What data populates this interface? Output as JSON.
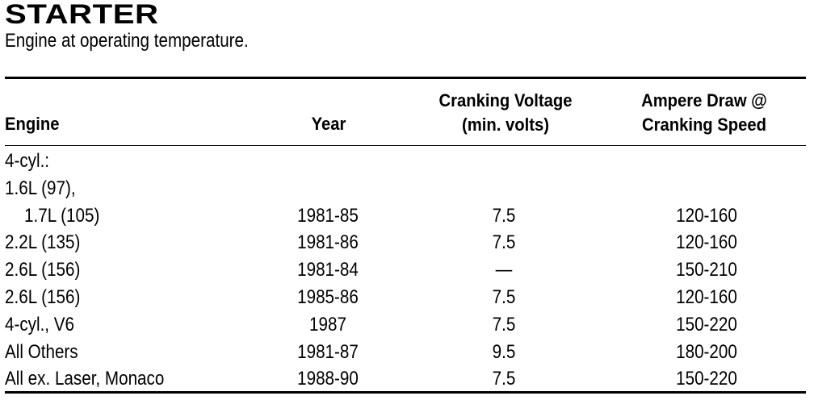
{
  "title": "STARTER",
  "subtitle": "Engine at operating temperature.",
  "table": {
    "headers": {
      "engine": "Engine",
      "year": "Year",
      "volt_line1": "Cranking Voltage",
      "volt_line2": "(min. volts)",
      "amp_line1": "Ampere Draw @",
      "amp_line2": "Cranking Speed"
    },
    "rows": [
      {
        "engine": "4-cyl.:",
        "year": "",
        "voltage": "",
        "amperes": "",
        "indent": false
      },
      {
        "engine": "1.6L (97),",
        "year": "",
        "voltage": "",
        "amperes": "",
        "indent": false
      },
      {
        "engine": "1.7L (105)",
        "year": "1981-85",
        "voltage": "7.5",
        "amperes": "120-160",
        "indent": true
      },
      {
        "engine": "2.2L (135)",
        "year": "1981-86",
        "voltage": "7.5",
        "amperes": "120-160",
        "indent": false
      },
      {
        "engine": "2.6L (156)",
        "year": "1981-84",
        "voltage": "—",
        "amperes": "150-210",
        "indent": false
      },
      {
        "engine": "2.6L (156)",
        "year": "1985-86",
        "voltage": "7.5",
        "amperes": "120-160",
        "indent": false
      },
      {
        "engine": "4-cyl., V6",
        "year": "1987",
        "voltage": "7.5",
        "amperes": "150-220",
        "indent": false
      },
      {
        "engine": "All Others",
        "year": "1981-87",
        "voltage": "9.5",
        "amperes": "180-200",
        "indent": false
      },
      {
        "engine": "All ex. Laser, Monaco",
        "year": "1988-90",
        "voltage": "7.5",
        "amperes": "150-220",
        "indent": false
      }
    ]
  }
}
